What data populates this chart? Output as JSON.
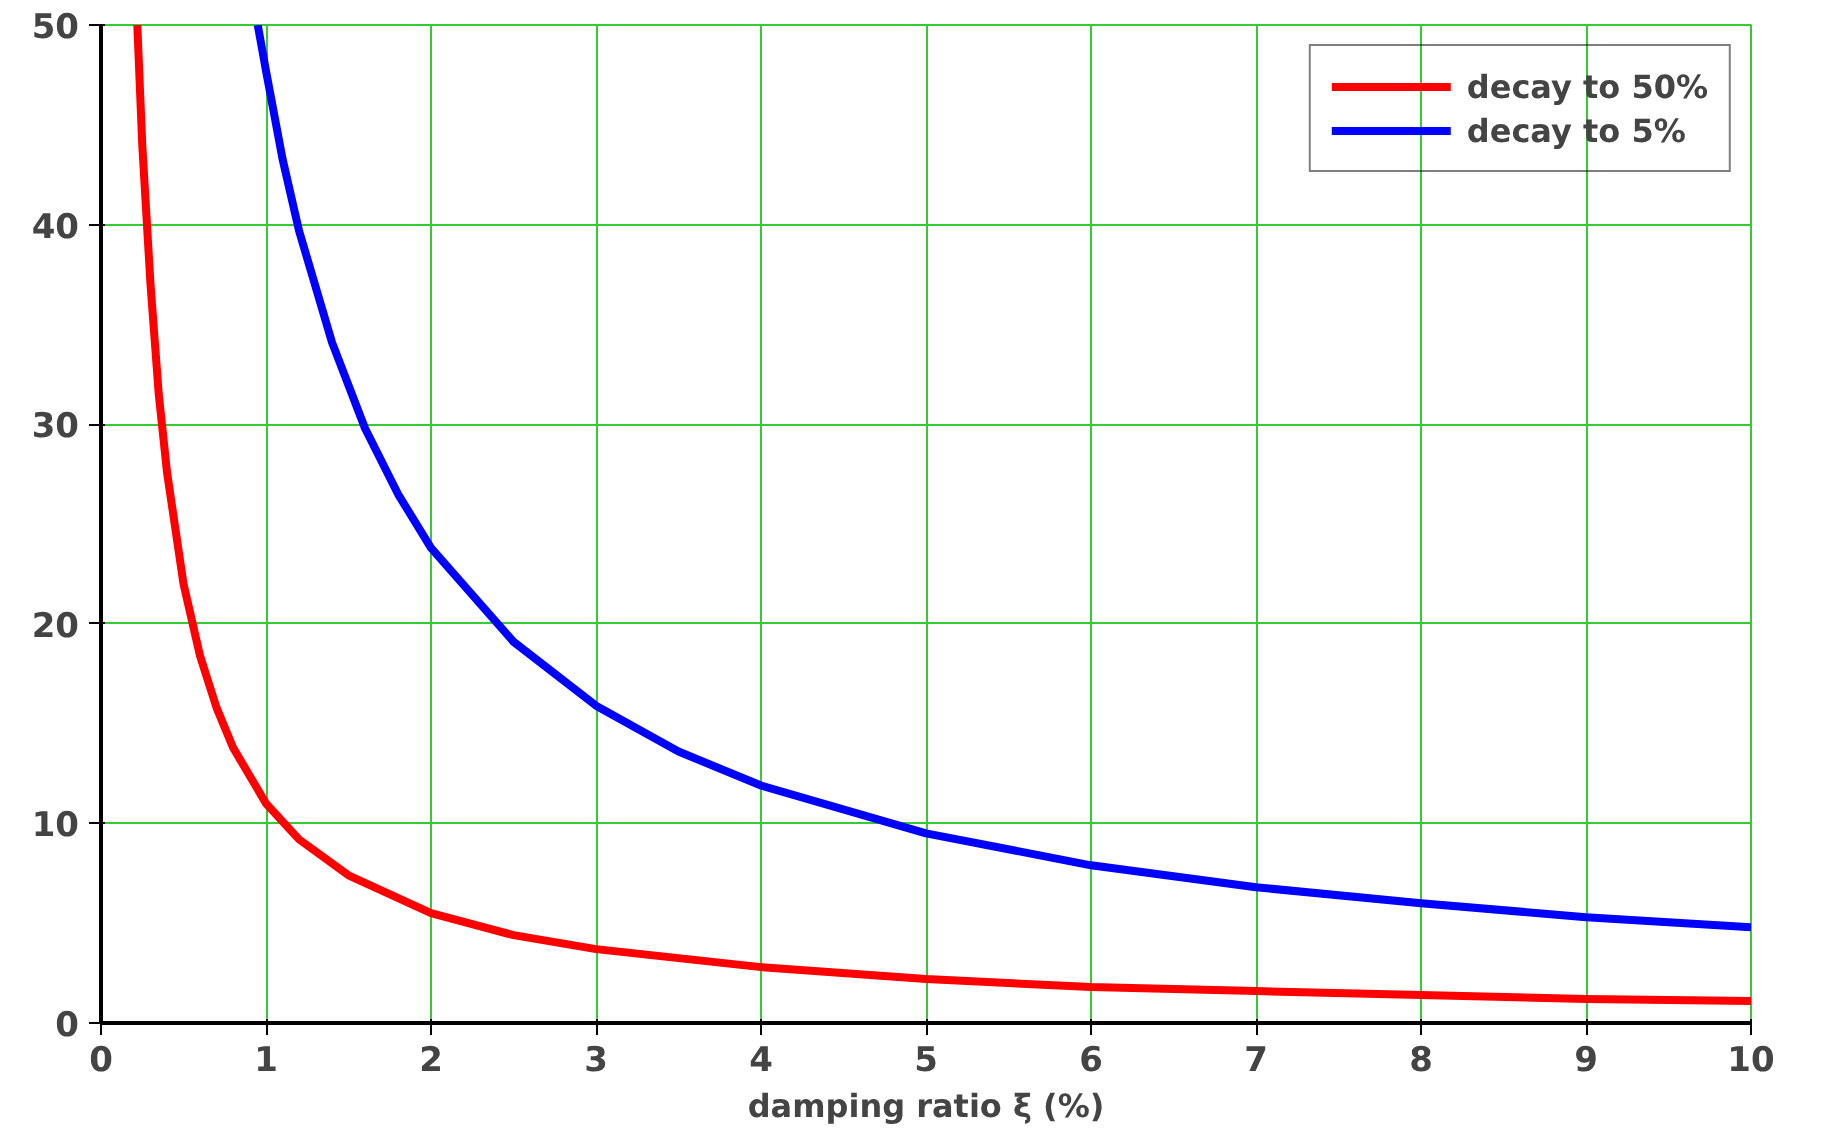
{
  "chart_data": {
    "type": "line",
    "xlabel": "damping ratio ξ (%)",
    "xlim": [
      0,
      10
    ],
    "ylim": [
      0,
      50
    ],
    "xticks": [
      0,
      1,
      2,
      3,
      4,
      5,
      6,
      7,
      8,
      9,
      10
    ],
    "yticks": [
      0,
      10,
      20,
      30,
      40,
      50
    ],
    "grid": true,
    "legend": "top right",
    "line_style": "solid",
    "marker": "none",
    "series": [
      {
        "name": "decay to 50%",
        "color": "#ff0000",
        "x": [
          0.22,
          0.25,
          0.3,
          0.35,
          0.4,
          0.5,
          0.6,
          0.7,
          0.8,
          1,
          1.2,
          1.5,
          2,
          2.5,
          3,
          4,
          5,
          6,
          7,
          8,
          9,
          10
        ],
        "values": [
          50,
          44,
          37,
          31.5,
          27.6,
          22,
          18.4,
          15.8,
          13.8,
          11,
          9.2,
          7.4,
          5.5,
          4.4,
          3.7,
          2.8,
          2.2,
          1.8,
          1.6,
          1.4,
          1.2,
          1.1
        ]
      },
      {
        "name": "decay to 5%",
        "color": "#0000ff",
        "x": [
          0.95,
          1,
          1.1,
          1.2,
          1.4,
          1.6,
          1.8,
          2,
          2.5,
          3,
          3.5,
          4,
          5,
          6,
          7,
          8,
          9,
          10
        ],
        "values": [
          50,
          47.7,
          43.3,
          39.7,
          34.1,
          29.8,
          26.5,
          23.8,
          19.1,
          15.9,
          13.6,
          11.9,
          9.5,
          7.9,
          6.8,
          6.0,
          5.3,
          4.8
        ]
      }
    ]
  }
}
